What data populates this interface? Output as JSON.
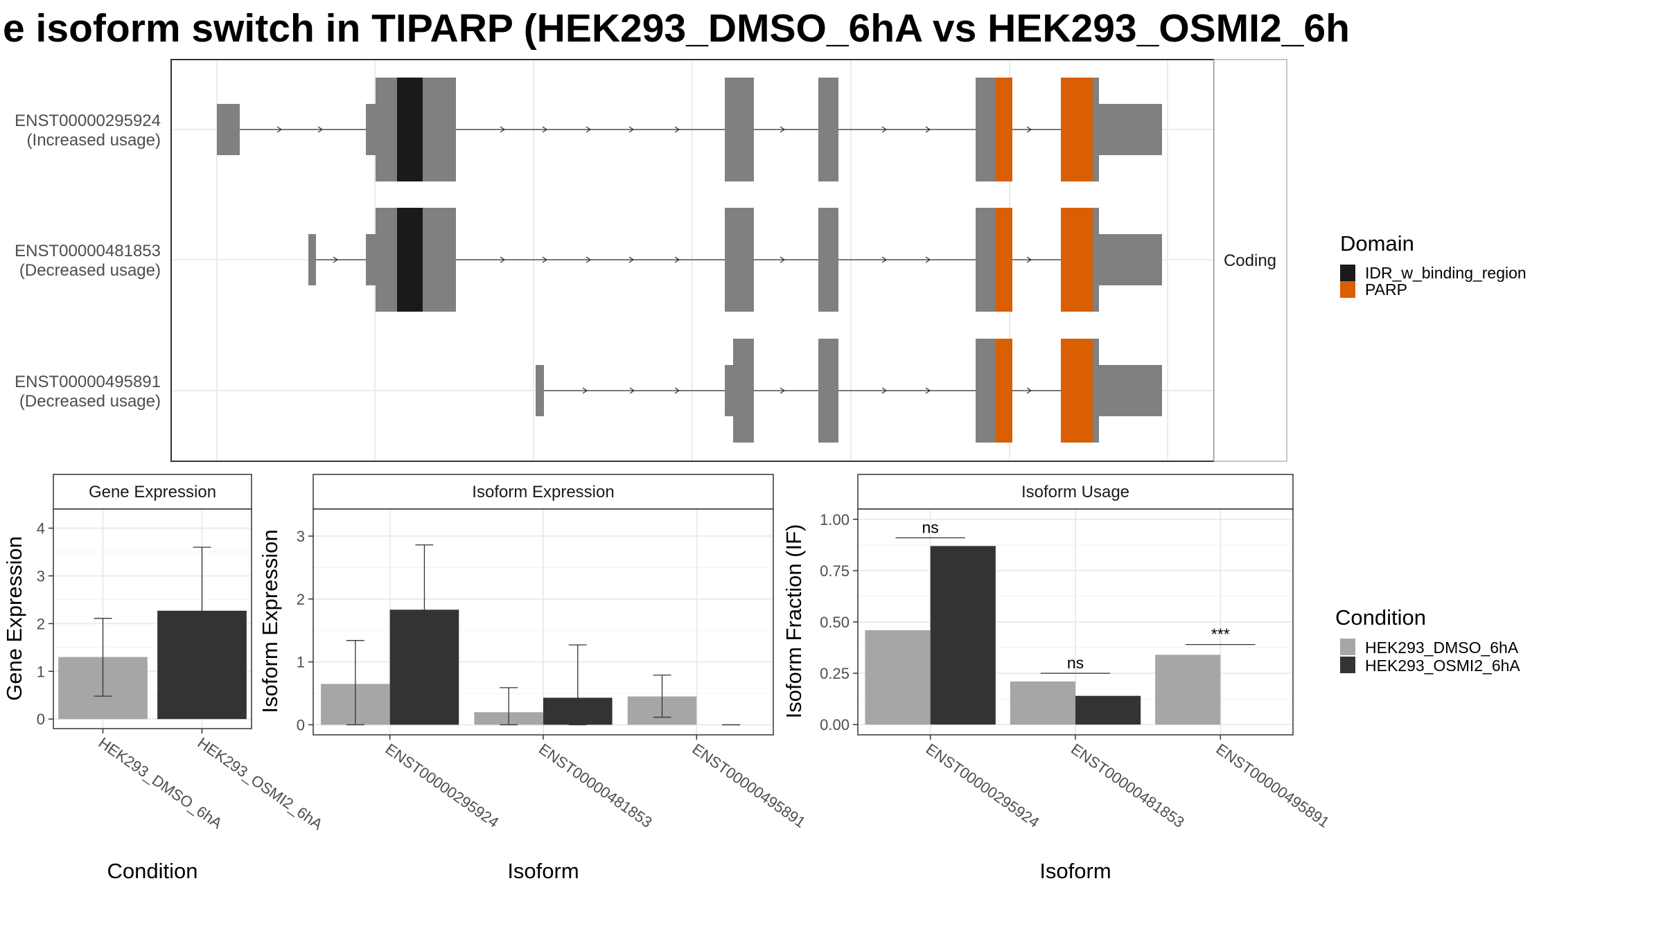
{
  "title": "e isoform switch in TIPARP (HEK293_DMSO_6hA vs HEK293_OSMI2_6h",
  "colors": {
    "utr": "#808080",
    "IDR_w_binding_region": "#1a1a1a",
    "PARP": "#d95f02",
    "HEK293_DMSO_6hA": "#a6a6a6",
    "HEK293_OSMI2_6hA": "#333333",
    "grid": "#ebebeb",
    "panel_border": "#333333"
  },
  "structure": {
    "facet_label": "Coding",
    "transcripts": [
      {
        "id": "ENST00000295924",
        "status": "(Increased usage)"
      },
      {
        "id": "ENST00000481853",
        "status": "(Decreased usage)"
      },
      {
        "id": "ENST00000495891",
        "status": "(Decreased usage)"
      }
    ],
    "legend": {
      "title": "Domain",
      "items": [
        {
          "label": "IDR_w_binding_region",
          "key": "IDR_w_binding_region"
        },
        {
          "label": "PARP",
          "key": "PARP"
        }
      ]
    }
  },
  "condition_legend": {
    "title": "Condition",
    "items": [
      {
        "label": "HEK293_DMSO_6hA",
        "key": "HEK293_DMSO_6hA"
      },
      {
        "label": "HEK293_OSMI2_6hA",
        "key": "HEK293_OSMI2_6hA"
      }
    ]
  },
  "chart_data": [
    {
      "type": "bar",
      "title": "Gene Expression",
      "xlabel": "Condition",
      "ylabel": "Gene Expression",
      "categories": [
        "HEK293_DMSO_6hA",
        "HEK293_OSMI2_6hA"
      ],
      "values": [
        1.3,
        2.27
      ],
      "error_low": [
        0.48,
        0.94
      ],
      "error_high": [
        2.11,
        3.6
      ],
      "ylim": [
        -0.2,
        4.4
      ],
      "yticks": [
        0,
        1,
        2,
        3,
        4
      ]
    },
    {
      "type": "bar",
      "title": "Isoform Expression",
      "xlabel": "Isoform",
      "ylabel": "Isoform Expression",
      "categories": [
        "ENST00000295924",
        "ENST00000481853",
        "ENST00000495891"
      ],
      "series": [
        {
          "key": "HEK293_DMSO_6hA",
          "values": [
            0.65,
            0.2,
            0.45
          ],
          "error_low": [
            0.0,
            0.0,
            0.12
          ],
          "error_high": [
            1.34,
            0.59,
            0.79
          ]
        },
        {
          "key": "HEK293_OSMI2_6hA",
          "values": [
            1.83,
            0.43,
            0.0
          ],
          "error_low": [
            0.81,
            0.0,
            0.0
          ],
          "error_high": [
            2.86,
            1.27,
            0.0
          ]
        }
      ],
      "ylim": [
        -0.16,
        3.43
      ],
      "yticks": [
        0,
        1,
        2,
        3
      ]
    },
    {
      "type": "bar",
      "title": "Isoform Usage",
      "xlabel": "Isoform",
      "ylabel": "Isoform Fraction (IF)",
      "categories": [
        "ENST00000295924",
        "ENST00000481853",
        "ENST00000495891"
      ],
      "series": [
        {
          "key": "HEK293_DMSO_6hA",
          "values": [
            0.46,
            0.21,
            0.34
          ]
        },
        {
          "key": "HEK293_OSMI2_6hA",
          "values": [
            0.87,
            0.14,
            0.0
          ]
        }
      ],
      "significance": [
        "ns",
        "ns",
        "***"
      ],
      "sig_level": [
        0.91,
        0.25,
        0.39
      ],
      "ylim": [
        -0.05,
        1.05
      ],
      "yticks": [
        "0.00",
        "0.25",
        "0.50",
        "0.75",
        "1.00"
      ]
    }
  ]
}
